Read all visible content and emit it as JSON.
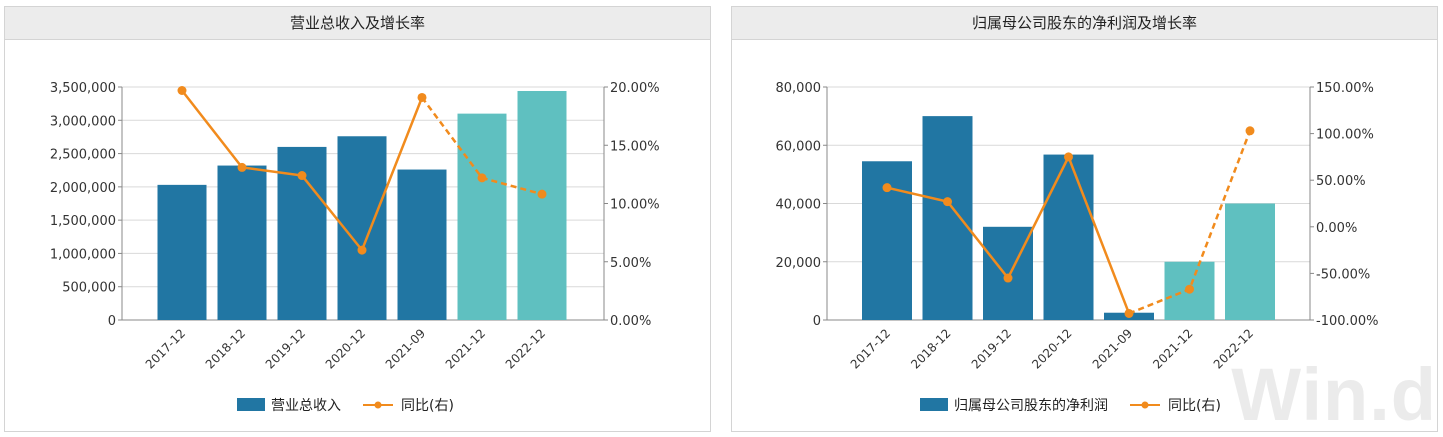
{
  "watermark": "Win.d",
  "colors": {
    "bar_actual": "#2176a3",
    "bar_forecast": "#5fc0c0",
    "line": "#f18b1d"
  },
  "chart_data": [
    {
      "type": "bar",
      "title": "营业总收入及增长率",
      "categories": [
        "2017-12",
        "2018-12",
        "2019-12",
        "2020-12",
        "2021-09",
        "2021-12",
        "2022-12"
      ],
      "forecast_from_index": 5,
      "series": [
        {
          "name": "营业总收入",
          "axis": "left",
          "kind": "bar",
          "values": [
            2030000,
            2320000,
            2600000,
            2760000,
            2260000,
            3100000,
            3440000
          ]
        },
        {
          "name": "同比(右)",
          "axis": "right",
          "kind": "line",
          "values": [
            19.7,
            13.1,
            12.4,
            6.0,
            19.1,
            12.2,
            10.8
          ]
        }
      ],
      "ylim_left": [
        0,
        3500000
      ],
      "ylim_right": [
        0,
        20
      ],
      "y_ticks_left": [
        "0",
        "500,000",
        "1,000,000",
        "1,500,000",
        "2,000,000",
        "2,500,000",
        "3,000,000",
        "3,500,000"
      ],
      "y_ticks_right": [
        "0.00%",
        "5.00%",
        "10.00%",
        "15.00%",
        "20.00%"
      ],
      "legend": [
        "营业总收入",
        "同比(右)"
      ],
      "legend_position": "bottom"
    },
    {
      "type": "bar",
      "title": "归属母公司股东的净利润及增长率",
      "categories": [
        "2017-12",
        "2018-12",
        "2019-12",
        "2020-12",
        "2021-09",
        "2021-12",
        "2022-12"
      ],
      "forecast_from_index": 5,
      "series": [
        {
          "name": "归属母公司股东的净利润",
          "axis": "left",
          "kind": "bar",
          "values": [
            54500,
            70000,
            32000,
            56800,
            2500,
            20000,
            40000
          ]
        },
        {
          "name": "同比(右)",
          "axis": "right",
          "kind": "line",
          "values": [
            42,
            27,
            -55,
            75,
            -93,
            -67,
            103
          ]
        }
      ],
      "ylim_left": [
        0,
        80000
      ],
      "ylim_right": [
        -100,
        150
      ],
      "y_ticks_left": [
        "0",
        "20,000",
        "40,000",
        "60,000",
        "80,000"
      ],
      "y_ticks_right": [
        "-100.00%",
        "-50.00%",
        "0.00%",
        "50.00%",
        "100.00%",
        "150.00%"
      ],
      "legend": [
        "归属母公司股东的净利润",
        "同比(右)"
      ],
      "legend_position": "bottom"
    }
  ]
}
